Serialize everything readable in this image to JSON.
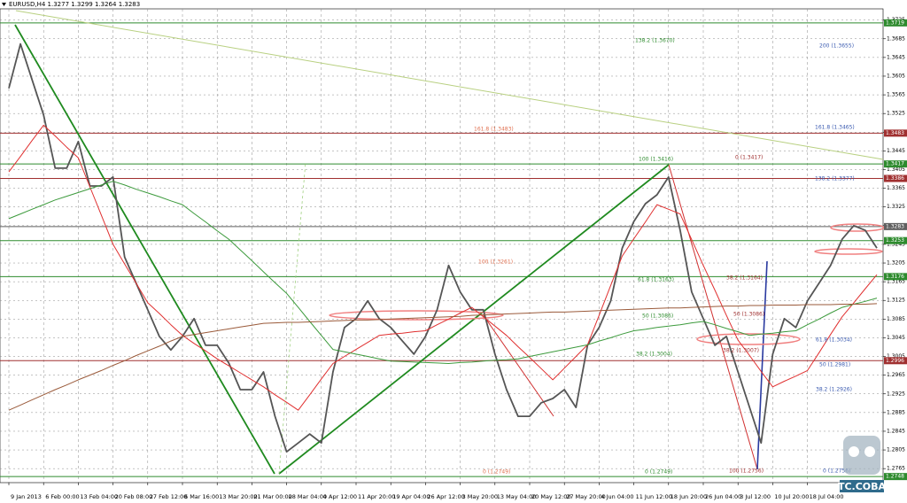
{
  "chart_data": {
    "type": "line",
    "title": "EURUSD,H4  1.3277 1.3299 1.3264 1.3283",
    "watermark": "TC.COBA",
    "categories": [
      "9 Jan 2013",
      null,
      null,
      "6 Feb 00:00",
      null,
      null,
      "13 Feb 04:00",
      null,
      null,
      "20 Feb 08:00",
      null,
      null,
      "27 Feb 12:00",
      null,
      null,
      "6 Mar 16:00",
      null,
      null,
      "13 Mar 20:00",
      null,
      null,
      "21 Mar 00:00",
      null,
      null,
      "28 Mar 04:00",
      null,
      null,
      "4 Apr 12:00",
      null,
      null,
      "11 Apr 20:00",
      null,
      null,
      "19 Apr 04:00",
      null,
      null,
      "26 Apr 12:00",
      null,
      null,
      "3 May 20:00",
      null,
      null,
      "13 May 04:00",
      null,
      null,
      "20 May 12:00",
      null,
      null,
      "27 May 20:00",
      null,
      null,
      "4 Jun 04:00",
      null,
      null,
      "11 Jun 12:00",
      null,
      null,
      "18 Jun 20:00",
      null,
      null,
      "26 Jun 04:00",
      null,
      null,
      "3 Jul 12:00",
      null,
      null,
      "10 Jul 20:00",
      null,
      null,
      "18 Jul 04:00",
      null,
      null,
      null,
      null,
      null,
      null
    ],
    "series": [
      {
        "color": "#555555",
        "values": [
          1.3579,
          1.3674,
          1.3598,
          1.3522,
          1.3408,
          1.3408,
          1.3465,
          1.337,
          1.337,
          1.3389,
          1.3218,
          1.3162,
          1.3105,
          1.3048,
          1.3019,
          1.3048,
          1.3086,
          1.3029,
          1.3029,
          1.2991,
          1.2934,
          1.2934,
          1.2972,
          1.2877,
          1.2801,
          1.282,
          1.2839,
          1.282,
          1.2972,
          1.3067,
          1.3086,
          1.3124,
          1.3086,
          1.3067,
          1.3038,
          1.301,
          1.3048,
          1.3105,
          1.32,
          1.3143,
          1.3105,
          1.3105,
          1.301,
          1.2934,
          1.2877,
          1.2877,
          1.2906,
          1.2915,
          1.2934,
          1.2896,
          1.3029,
          1.3067,
          1.3124,
          1.3237,
          1.3294,
          1.3332,
          1.3351,
          1.3389,
          1.3275,
          1.3143,
          1.3086,
          1.3029,
          1.3048,
          1.2972,
          1.2896,
          1.282,
          1.301,
          1.3086,
          1.3067,
          1.3124,
          1.3162,
          1.32,
          1.3256,
          1.3285,
          1.3275,
          1.3237
        ]
      },
      {
        "color": "#e03030",
        "values": [
          1.34,
          1.3433,
          1.3467,
          1.35,
          1.3477,
          1.3453,
          1.343,
          1.3368,
          1.3307,
          1.3245,
          1.3203,
          1.3162,
          1.312,
          1.3097,
          1.3073,
          1.305,
          1.3033,
          1.3017,
          1.3,
          1.2985,
          1.297,
          1.2955,
          1.294,
          1.2923,
          1.2907,
          1.289,
          1.2923,
          1.2957,
          1.299,
          1.3005,
          1.302,
          1.3035,
          1.305,
          1.3053,
          1.3055,
          1.3058,
          1.306,
          1.3073,
          1.3085,
          1.3098,
          1.311,
          1.309,
          1.307,
          1.305,
          1.3026,
          1.3003,
          1.2979,
          1.2955,
          1.298,
          1.3005,
          1.303,
          1.3093,
          1.3157,
          1.322,
          1.3257,
          1.3293,
          1.333,
          1.332,
          1.331,
          1.3255,
          1.32,
          1.3147,
          1.3093,
          1.304,
          1.3007,
          1.2973,
          1.294,
          1.2952,
          1.2963,
          1.2975,
          1.3013,
          1.3052,
          1.309,
          1.312,
          1.315,
          1.318
        ]
      },
      {
        "color": "#3c9a3c",
        "values": [
          1.33,
          1.331,
          1.332,
          1.333,
          1.334,
          1.3348,
          1.3356,
          1.3364,
          1.3372,
          1.338,
          1.3372,
          1.3363,
          1.3355,
          1.3347,
          1.3338,
          1.333,
          1.3311,
          1.3293,
          1.3274,
          1.3256,
          1.3233,
          1.321,
          1.3186,
          1.3163,
          1.314,
          1.311,
          1.308,
          1.305,
          1.302,
          1.3015,
          1.301,
          1.3005,
          1.3,
          1.2995,
          1.2994,
          1.2993,
          1.2992,
          1.2991,
          1.299,
          1.2992,
          1.2993,
          1.2995,
          1.2997,
          1.2998,
          1.3,
          1.3005,
          1.301,
          1.3015,
          1.302,
          1.3025,
          1.303,
          1.3038,
          1.3045,
          1.3053,
          1.306,
          1.3063,
          1.3067,
          1.307,
          1.3073,
          1.3077,
          1.308,
          1.3073,
          1.3065,
          1.3058,
          1.305,
          1.3053,
          1.3055,
          1.3058,
          1.306,
          1.3073,
          1.3085,
          1.3098,
          1.311,
          1.3117,
          1.3123,
          1.313
        ]
      },
      {
        "color": "#9a5a3a",
        "values": [
          1.289,
          1.2901,
          1.2912,
          1.2923,
          1.2934,
          1.2944,
          1.2955,
          1.2965,
          1.2975,
          1.2986,
          1.2996,
          1.3007,
          1.3017,
          1.3027,
          1.3038,
          1.3048,
          1.3052,
          1.3056,
          1.306,
          1.3064,
          1.3068,
          1.3072,
          1.3076,
          1.3077,
          1.3078,
          1.3078,
          1.3079,
          1.308,
          1.3081,
          1.3082,
          1.3083,
          1.3083,
          1.3084,
          1.3085,
          1.3086,
          1.3087,
          1.3088,
          1.3089,
          1.309,
          1.3091,
          1.3093,
          1.3094,
          1.3095,
          1.3096,
          1.3097,
          1.3098,
          1.3099,
          1.31,
          1.31,
          1.3101,
          1.3102,
          1.3103,
          1.3104,
          1.3105,
          1.3106,
          1.3107,
          1.3108,
          1.3109,
          1.3109,
          1.311,
          1.3111,
          1.3112,
          1.3113,
          1.3113,
          1.3114,
          1.3114,
          1.3115,
          1.3115,
          1.3115,
          1.3116,
          1.3116,
          1.3116,
          1.3117,
          1.3117,
          1.3117,
          1.3118
        ]
      }
    ],
    "ylim": [
      1.2735,
      1.3749
    ],
    "yticks": [
      1.2765,
      1.2805,
      1.2845,
      1.2885,
      1.2925,
      1.2965,
      1.3005,
      1.3045,
      1.3085,
      1.3125,
      1.3165,
      1.3205,
      1.3245,
      1.3285,
      1.3325,
      1.3365,
      1.3405,
      1.3445,
      1.3485,
      1.3525,
      1.3565,
      1.3605,
      1.3645,
      1.3685,
      1.3725
    ],
    "grid": true,
    "levels": [
      {
        "value": 1.3719,
        "color": "#2e8b2e"
      },
      {
        "value": 1.3483,
        "color": "#a03030"
      },
      {
        "value": 1.3417,
        "color": "#2e8b2e"
      },
      {
        "value": 1.3386,
        "color": "#a03030"
      },
      {
        "value": 1.3283,
        "color": "#606060"
      },
      {
        "value": 1.3253,
        "color": "#2e8b2e"
      },
      {
        "value": 1.3176,
        "color": "#2e8b2e"
      },
      {
        "value": 1.2996,
        "color": "#a03030"
      },
      {
        "value": 1.2748,
        "color": "#2e8b2e"
      }
    ],
    "annotations": [
      "138.2 (1.3670)",
      "200 (1.3655)",
      "161.8 (1.3483)",
      "161.8 (1.3465)",
      "100 (1.3416)",
      "0 (1.3417)",
      "138.2 (1.3377)",
      "100 (1.3261)",
      "61.8 (1.3163)",
      "38.2 (1.3164)",
      "50 (1.3086)",
      "50 (1.3086)",
      "61.8 (1.3034)",
      "38.2 (1.3007)",
      "38.2 (1.3004)",
      "50 (1.2981)",
      "38.2 (1.2926)",
      "0 (1.2749)",
      "0 (1.2749)",
      "100 (1.2756)",
      "0 (1.2756)"
    ]
  }
}
